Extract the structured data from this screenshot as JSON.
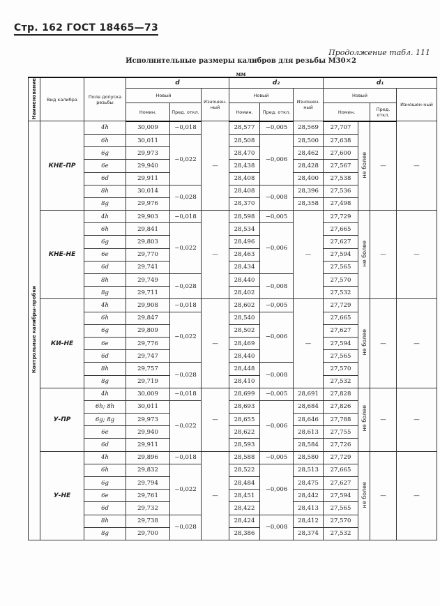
{
  "page_header": "Стр. 162 ГОСТ 18465—73",
  "continuation": "Продолжение табл. 111",
  "title": "Исполнительные размеры калибров для резьбы М30×2",
  "unit": "мм",
  "columns": {
    "name": "Наименование",
    "type": "Вид калибра",
    "field": "Поле допуска резьбы",
    "d": "d",
    "d2": "d₂",
    "d1": "d₁",
    "new": "Новый",
    "worn": "Изношен-ный",
    "nom": "Номин.",
    "dev": "Пред. откл."
  },
  "category": "Контрольные калибры-пробки",
  "groups": [
    {
      "name": "КНЕ-ПР",
      "fields": [
        "4h",
        "6h",
        "6g",
        "6e",
        "6d",
        "8h",
        "8g"
      ],
      "d_nom": [
        "30,009",
        "30,011",
        "29,973",
        "29,940",
        "29,911",
        "30,014",
        "29,976"
      ],
      "d_dev": [
        {
          "v": "−0,018",
          "n": 1
        },
        {
          "v": "−0,022",
          "n": 4
        },
        {
          "v": "−0,028",
          "n": 2
        }
      ],
      "d_worn": "—",
      "d2_nom": [
        "28,577",
        "28,508",
        "28,470",
        "28,438",
        "28,408",
        "28,408",
        "28,370"
      ],
      "d2_dev": [
        {
          "v": "−0,005",
          "n": 1
        },
        {
          "v": "−0,006",
          "n": 4
        },
        {
          "v": "−0,008",
          "n": 2
        }
      ],
      "d2_worn": [
        "28,569",
        "28,500",
        "28,462",
        "28,428",
        "28,400",
        "28,396",
        "28,358"
      ],
      "d1_nom": [
        "27,707",
        "27,638",
        "27,600",
        "27,567",
        "27,538",
        "27,536",
        "27,498"
      ],
      "d1_note": "не более",
      "d1_dev": "—",
      "d1_worn": "—"
    },
    {
      "name": "КНЕ-НЕ",
      "fields": [
        "4h",
        "6h",
        "6g",
        "6e",
        "6d",
        "8h",
        "8g"
      ],
      "d_nom": [
        "29,903",
        "29,841",
        "29,803",
        "29,770",
        "29,741",
        "29,749",
        "29,711"
      ],
      "d_dev": [
        {
          "v": "−0,018",
          "n": 1
        },
        {
          "v": "−0,022",
          "n": 4
        },
        {
          "v": "−0,028",
          "n": 2
        }
      ],
      "d_worn": "—",
      "d2_nom": [
        "28,598",
        "28,534",
        "28,496",
        "28,463",
        "28,434",
        "28,440",
        "28,402"
      ],
      "d2_dev": [
        {
          "v": "−0,005",
          "n": 1
        },
        {
          "v": "−0,006",
          "n": 4
        },
        {
          "v": "−0,008",
          "n": 2
        }
      ],
      "d2_worn": "—",
      "d1_nom": [
        "27,729",
        "27,665",
        "27,627",
        "27,594",
        "27,565",
        "27,570",
        "27,532"
      ],
      "d1_note": "не более",
      "d1_dev": "—",
      "d1_worn": "—"
    },
    {
      "name": "КИ-НЕ",
      "fields": [
        "4h",
        "6h",
        "6g",
        "6e",
        "6d",
        "8h",
        "8g"
      ],
      "d_nom": [
        "29,908",
        "29,847",
        "29,809",
        "29,776",
        "29,747",
        "29,757",
        "29,719"
      ],
      "d_dev": [
        {
          "v": "−0,018",
          "n": 1
        },
        {
          "v": "−0,022",
          "n": 4
        },
        {
          "v": "−0,028",
          "n": 2
        }
      ],
      "d_worn": "—",
      "d2_nom": [
        "28,602",
        "28,540",
        "28,502",
        "28,469",
        "28,440",
        "28,448",
        "28,410"
      ],
      "d2_dev": [
        {
          "v": "−0,005",
          "n": 1
        },
        {
          "v": "−0,006",
          "n": 4
        },
        {
          "v": "−0,008",
          "n": 2
        }
      ],
      "d2_worn": "—",
      "d1_nom": [
        "27,729",
        "27,665",
        "27,627",
        "27,594",
        "27,565",
        "27,570",
        "27,532"
      ],
      "d1_note": "не более",
      "d1_dev": "—",
      "d1_worn": "—"
    },
    {
      "name": "У-ПР",
      "fields": [
        "4h",
        "6h; 8h",
        "6g; 8g",
        "6e",
        "6d"
      ],
      "d_nom": [
        "30,009",
        "30,011",
        "29,973",
        "29,940",
        "29,911"
      ],
      "d_dev": [
        {
          "v": "−0,018",
          "n": 1
        },
        {
          "v": "−0,022",
          "n": 4
        }
      ],
      "d_worn": "—",
      "d2_nom": [
        "28,699",
        "28,693",
        "28,655",
        "28,622",
        "28,593"
      ],
      "d2_dev": [
        {
          "v": "−0,005",
          "n": 1
        },
        {
          "v": "−0,006",
          "n": 4
        }
      ],
      "d2_worn": [
        "28,691",
        "28,684",
        "28,646",
        "28,613",
        "28,584"
      ],
      "d1_nom": [
        "27,828",
        "27,826",
        "27,788",
        "27,755",
        "27,726"
      ],
      "d1_note": "не более",
      "d1_dev": "—",
      "d1_worn": "—"
    },
    {
      "name": "У-НЕ",
      "fields": [
        "4h",
        "6h",
        "6g",
        "6e",
        "6d",
        "8h",
        "8g"
      ],
      "d_nom": [
        "29,896",
        "29,832",
        "29,794",
        "29,761",
        "29,732",
        "29,738",
        "29,700"
      ],
      "d_dev": [
        {
          "v": "−0,018",
          "n": 1
        },
        {
          "v": "−0,022",
          "n": 4
        },
        {
          "v": "−0,028",
          "n": 2
        }
      ],
      "d_worn": "—",
      "d2_nom": [
        "28,588",
        "28,522",
        "28,484",
        "28,451",
        "28,422",
        "28,424",
        "28,386"
      ],
      "d2_dev": [
        {
          "v": "−0,005",
          "n": 1
        },
        {
          "v": "−0,006",
          "n": 4
        },
        {
          "v": "−0,008",
          "n": 2
        }
      ],
      "d2_worn": [
        "28,580",
        "28,513",
        "28,475",
        "28,442",
        "28,413",
        "28,412",
        "28,374"
      ],
      "d1_nom": [
        "27,729",
        "27,665",
        "27,627",
        "27,594",
        "27,565",
        "27,570",
        "27,532"
      ],
      "d1_note": "не более",
      "d1_dev": "—",
      "d1_worn": "—"
    }
  ]
}
